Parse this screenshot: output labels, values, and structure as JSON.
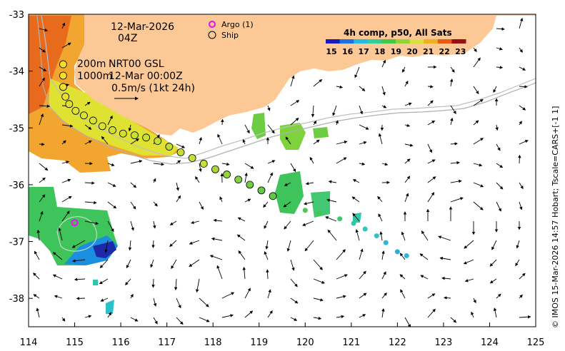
{
  "map": {
    "date": "12-Mar-2026",
    "time": "04Z",
    "depth_line_1": "200m",
    "depth_line_2": "1000m",
    "product": "NRT00 GSL",
    "product_time": "12-Mar 00:00Z",
    "scale_text": "0.5m/s (1kt 24h)",
    "side_credit": "© IMOS 15-Mar-2026 14:57 Hobart; Tscale=CARS+[-1 1]"
  },
  "legend": {
    "argo_label": "Argo (1)",
    "ship_label": "Ship"
  },
  "colorbar": {
    "title": "4h comp, p50, All Sats",
    "ticks": [
      "15",
      "16",
      "17",
      "18",
      "19",
      "20",
      "21",
      "22",
      "23"
    ],
    "colors": [
      "#1a1ab8",
      "#1e6fe0",
      "#27b8e0",
      "#2fcf9a",
      "#44c84a",
      "#8fd43a",
      "#d8e23a",
      "#f2b020",
      "#e85a16",
      "#9a0f0f"
    ]
  },
  "axes": {
    "lon_ticks": [
      "114",
      "115",
      "116",
      "117",
      "118",
      "119",
      "120",
      "121",
      "122",
      "123",
      "124",
      "125"
    ],
    "lat_ticks": [
      "-33",
      "-34",
      "-35",
      "-36",
      "-37",
      "-38"
    ]
  },
  "ship_track": {
    "points": [
      [
        114.75,
        -33.88
      ],
      [
        114.75,
        -34.08
      ],
      [
        114.75,
        -34.28
      ],
      [
        114.8,
        -34.45
      ],
      [
        114.88,
        -34.58
      ],
      [
        115.02,
        -34.7
      ],
      [
        115.2,
        -34.78
      ],
      [
        115.4,
        -34.87
      ],
      [
        115.6,
        -34.97
      ],
      [
        115.82,
        -35.04
      ],
      [
        116.05,
        -35.1
      ],
      [
        116.3,
        -35.13
      ],
      [
        116.55,
        -35.17
      ],
      [
        116.8,
        -35.23
      ],
      [
        117.05,
        -35.33
      ],
      [
        117.3,
        -35.43
      ],
      [
        117.55,
        -35.53
      ],
      [
        117.8,
        -35.63
      ],
      [
        118.05,
        -35.73
      ],
      [
        118.3,
        -35.82
      ],
      [
        118.55,
        -35.91
      ],
      [
        118.8,
        -36.0
      ],
      [
        119.05,
        -36.1
      ],
      [
        119.3,
        -36.2
      ]
    ],
    "point_colors": [
      "#f2e030",
      "#f2e030",
      "#f2e030",
      "#e8e030",
      "#e0e030",
      "#e0e030",
      "#d8e230",
      "#d8e230",
      "#d8e230",
      "#d0e030",
      "#d0e030",
      "#c8e030",
      "#c8e030",
      "#c8e030",
      "#c0dc30",
      "#c8e030",
      "#c8e030",
      "#c8e030",
      "#a8d838",
      "#90d43a",
      "#80d040",
      "#70cc40",
      "#66c844",
      "#60c848"
    ],
    "tail_points": [
      [
        120.0,
        -36.45
      ],
      [
        120.3,
        -36.5
      ],
      [
        120.75,
        -36.6
      ],
      [
        121.05,
        -36.68
      ],
      [
        121.3,
        -36.78
      ],
      [
        121.55,
        -36.9
      ],
      [
        121.75,
        -37.02
      ],
      [
        122.0,
        -37.18
      ],
      [
        122.2,
        -37.25
      ]
    ],
    "tail_colors": [
      "#50c850",
      "#44c848",
      "#3cc870",
      "#30c8a0",
      "#2ec8b8",
      "#2cc0c8",
      "#2cb8d0",
      "#2cb0d8",
      "#30b4d8"
    ]
  },
  "argo_float": {
    "lon": 115.0,
    "lat": -36.67
  }
}
